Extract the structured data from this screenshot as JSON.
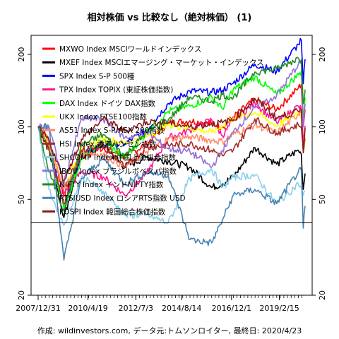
{
  "chart_data": {
    "type": "line",
    "title": "相対株価 vs 比較なし（絶対株価） (1)",
    "footer": "作成: wildinvestors.com, データ元:トムソンロイター, 最終日: 2020/4/23",
    "y_scale": "log",
    "ylim": [
      20,
      240
    ],
    "y_ticks": [
      20,
      50,
      100,
      200
    ],
    "reference_line": 40,
    "xlim": [
      "2007/12/31",
      "2020/4/23"
    ],
    "x_tick_labels": [
      "2007/12/31",
      "2010/4/19",
      "2012/7/3",
      "2014/8/14",
      "2016/12/1",
      "2019/2/15"
    ],
    "x": [
      "2007/12/31",
      "2008/6/30",
      "2009/3/9",
      "2009/12/31",
      "2010/12/31",
      "2011/12/31",
      "2012/12/31",
      "2013/12/31",
      "2014/12/31",
      "2015/12/31",
      "2016/6/30",
      "2016/12/30",
      "2017/12/29",
      "2018/12/31",
      "2019/12/31",
      "2020/2/19",
      "2020/3/23",
      "2020/4/23"
    ],
    "series": [
      {
        "name": "MXWO Index MSCIワールドインデックス",
        "color": "#ff0000",
        "values": [
          100,
          88,
          52,
          75,
          82,
          75,
          85,
          104,
          106,
          103,
          100,
          110,
          130,
          118,
          145,
          150,
          100,
          118
        ]
      },
      {
        "name": "MXEF Index MSCIエマージング・マーケット・インデックス",
        "color": "#000000",
        "values": [
          100,
          82,
          42,
          76,
          84,
          68,
          75,
          72,
          68,
          56,
          58,
          62,
          82,
          70,
          80,
          77,
          55,
          64
        ]
      },
      {
        "name": "SPX Index S-P 500種",
        "color": "#0000ff",
        "values": [
          100,
          86,
          46,
          76,
          85,
          85,
          97,
          125,
          141,
          139,
          142,
          152,
          182,
          170,
          220,
          229,
          151,
          191
        ]
      },
      {
        "name": "TPX Index TOPIX (東証株価指数)",
        "color": "#ff1493",
        "values": [
          100,
          86,
          53,
          65,
          62,
          52,
          64,
          90,
          97,
          107,
          92,
          106,
          126,
          104,
          122,
          118,
          87,
          101
        ]
      },
      {
        "name": "DAX Index ドイツ DAX指数",
        "color": "#00ff00",
        "values": [
          100,
          81,
          46,
          74,
          87,
          74,
          95,
          116,
          122,
          133,
          119,
          143,
          161,
          136,
          165,
          170,
          107,
          132
        ]
      },
      {
        "name": "UKX Index FTSE100指数",
        "color": "#ffff00",
        "values": [
          100,
          86,
          55,
          82,
          89,
          86,
          91,
          102,
          99,
          95,
          101,
          109,
          115,
          101,
          115,
          112,
          78,
          88
        ]
      },
      {
        "name": "AS51 Index S-P/ASX 200指数",
        "color": "#ff8c69",
        "values": [
          100,
          87,
          55,
          78,
          77,
          68,
          79,
          89,
          91,
          88,
          87,
          93,
          102,
          94,
          113,
          117,
          79,
          90
        ]
      },
      {
        "name": "HSI Index 香港ハンセン指数",
        "color": "#a52a2a",
        "values": [
          100,
          80,
          48,
          80,
          84,
          68,
          82,
          84,
          85,
          80,
          76,
          80,
          108,
          94,
          102,
          100,
          85,
          88
        ]
      },
      {
        "name": "SHCOMP Index 中国上海総合指数",
        "color": "#87ceeb",
        "values": [
          100,
          55,
          39,
          62,
          54,
          43,
          43,
          40,
          61,
          67,
          56,
          62,
          63,
          48,
          58,
          56,
          52,
          54
        ]
      },
      {
        "name": "IBOV Index ブラジルボベスパ指数",
        "color": "#9370db",
        "values": [
          100,
          100,
          58,
          108,
          108,
          90,
          95,
          81,
          79,
          68,
          80,
          95,
          120,
          135,
          182,
          185,
          100,
          125
        ]
      },
      {
        "name": "NIFTY Index インドNIFTY指数",
        "color": "#228b22",
        "values": [
          100,
          65,
          45,
          84,
          93,
          76,
          95,
          107,
          133,
          128,
          136,
          132,
          169,
          174,
          193,
          190,
          125,
          143
        ]
      },
      {
        "name": "RTSIUSD Index ロシアRTS指数 USD",
        "color": "#4682b4",
        "values": [
          100,
          100,
          28,
          61,
          74,
          58,
          65,
          63,
          34,
          33,
          41,
          52,
          55,
          48,
          65,
          66,
          38,
          47
        ]
      },
      {
        "name": "KOSPI Index 韓国総合株価指数",
        "color": "#8b1a1a",
        "values": [
          100,
          88,
          60,
          89,
          108,
          96,
          105,
          104,
          100,
          103,
          104,
          107,
          131,
          109,
          116,
          117,
          78,
          99
        ]
      }
    ]
  }
}
